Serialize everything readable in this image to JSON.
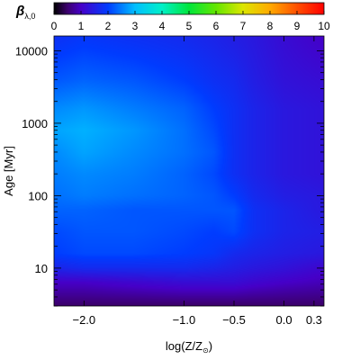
{
  "chart_data": {
    "type": "heatmap",
    "colorbar": {
      "label_symbol": "β",
      "label_subscript": "λ,0",
      "range": [
        0,
        10
      ],
      "ticks": [
        "0",
        "1",
        "2",
        "3",
        "4",
        "5",
        "6",
        "7",
        "8",
        "9",
        "10"
      ],
      "colormap": "rainbow (black-purple-blue-cyan-green-yellow-orange-red)"
    },
    "x_axis": {
      "label_prefix": "log(Z/Z",
      "label_sub": "⊙",
      "label_suffix": ")",
      "range": [
        -2.3,
        0.4
      ],
      "scale": "linear",
      "tick_labels": [
        {
          "value": -2.0,
          "label": "−2.0"
        },
        {
          "value": -1.0,
          "label": "−1.0"
        },
        {
          "value": -0.5,
          "label": "−0.5"
        },
        {
          "value": 0.0,
          "label": "0.0"
        },
        {
          "value": 0.3,
          "label": "0.3"
        }
      ]
    },
    "y_axis": {
      "label_main": "Age",
      "label_unit": "[Myr]",
      "range": [
        3,
        16000
      ],
      "scale": "log",
      "tick_labels": [
        {
          "value": 10,
          "label": "10"
        },
        {
          "value": 100,
          "label": "100"
        },
        {
          "value": 1000,
          "label": "1000"
        },
        {
          "value": 10000,
          "label": "10000"
        }
      ]
    },
    "grid": false,
    "field_description_values": {
      "log_age_nodes": [
        0.5,
        0.8,
        1.0,
        1.2,
        1.5,
        1.8,
        2.0,
        2.3,
        2.6,
        2.9,
        3.2,
        3.6,
        4.2
      ],
      "logZ_nodes": [
        -2.3,
        -2.0,
        -1.5,
        -1.0,
        -0.7,
        -0.5,
        -0.3,
        0.0,
        0.4
      ],
      "beta_values": [
        [
          0.5,
          0.5,
          0.5,
          0.5,
          0.5,
          0.5,
          0.5,
          0.5,
          0.5
        ],
        [
          1.0,
          1.0,
          1.1,
          1.2,
          1.2,
          1.2,
          1.1,
          1.0,
          0.9
        ],
        [
          1.6,
          1.7,
          1.7,
          1.7,
          1.6,
          1.5,
          1.4,
          1.3,
          1.1
        ],
        [
          2.0,
          2.1,
          2.1,
          2.0,
          1.9,
          1.7,
          1.6,
          1.5,
          1.4
        ],
        [
          2.1,
          2.2,
          2.2,
          2.1,
          2.0,
          2.1,
          1.8,
          1.6,
          1.5
        ],
        [
          2.3,
          2.3,
          2.2,
          2.2,
          2.2,
          2.2,
          1.8,
          1.6,
          1.4
        ],
        [
          2.4,
          2.5,
          2.4,
          2.3,
          2.2,
          2.0,
          1.7,
          1.5,
          1.4
        ],
        [
          2.5,
          2.6,
          2.5,
          2.3,
          2.1,
          1.8,
          1.6,
          1.4,
          1.3
        ],
        [
          2.6,
          2.8,
          2.6,
          2.4,
          2.2,
          1.8,
          1.6,
          1.4,
          1.3
        ],
        [
          2.8,
          2.9,
          2.7,
          2.4,
          2.1,
          1.8,
          1.6,
          1.4,
          1.3
        ],
        [
          2.6,
          2.7,
          2.5,
          2.3,
          2.0,
          1.8,
          1.6,
          1.4,
          1.3
        ],
        [
          2.2,
          2.3,
          2.2,
          2.0,
          1.8,
          1.7,
          1.5,
          1.3,
          1.2
        ],
        [
          1.8,
          1.9,
          1.8,
          1.7,
          1.6,
          1.5,
          1.4,
          1.2,
          1.0
        ]
      ]
    }
  }
}
